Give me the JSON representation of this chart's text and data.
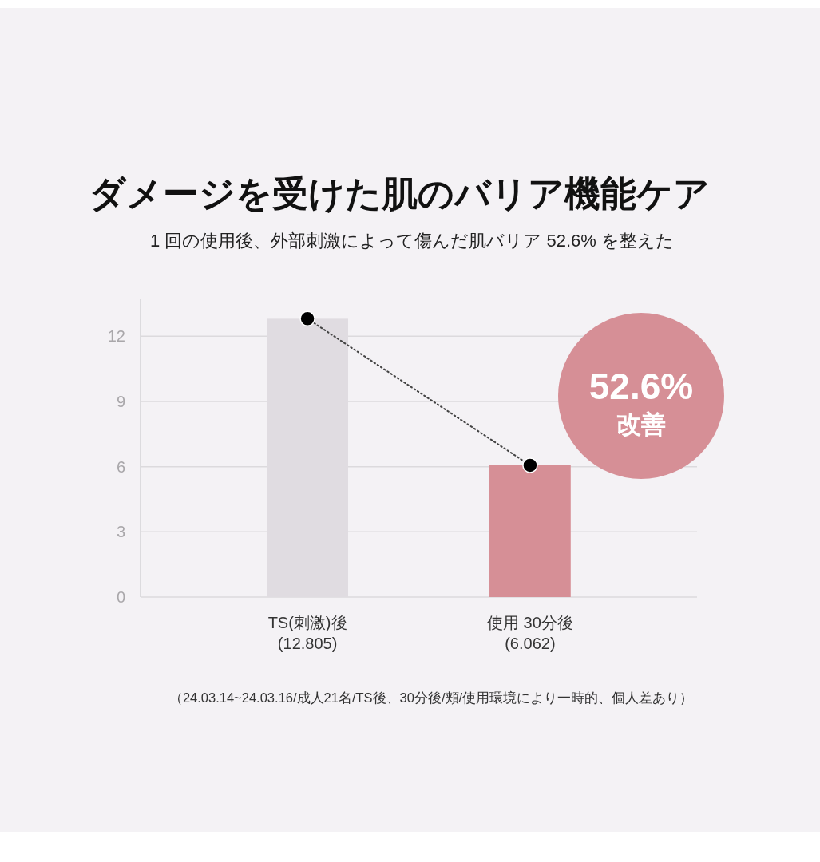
{
  "chart_data": {
    "type": "bar",
    "title": "ダメージを受けた肌のバリア機能ケア",
    "subtitle": "1 回の使用後、外部刺激によって傷んだ肌バリア 52.6% を整えた",
    "categories": [
      "TS(刺激)後",
      "使用 30分後"
    ],
    "series": [
      {
        "colors": [
          "#e0dce1",
          "#d68f96"
        ],
        "values": [
          12.805,
          6.062
        ],
        "value_labels": [
          "(12.805)",
          "(6.062)"
        ]
      },
      {
        "type": "line",
        "color": "#000000",
        "values": [
          12.805,
          6.062
        ],
        "marker": "circle",
        "line_style": "dotted"
      }
    ],
    "ylim": [
      0,
      13.7
    ],
    "yticks": [
      0,
      3,
      6,
      9,
      12
    ],
    "grid": "y",
    "annotations": [
      "52.6%",
      "改善",
      "（24.03.14~24.03.16/成人21名/TS後、30分後/頬/使用環境により一時的、個人差あり）"
    ]
  }
}
